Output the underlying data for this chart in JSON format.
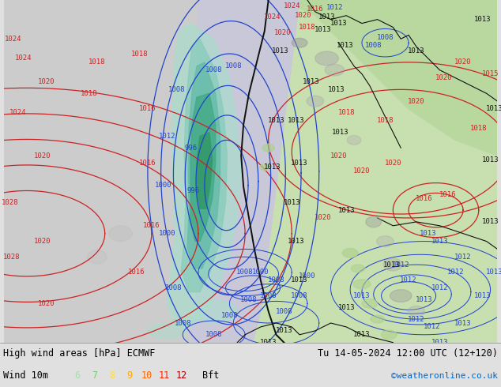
{
  "title_left": "High wind areas [hPa] ECMWF",
  "title_right": "Tu 14-05-2024 12:00 UTC (12+120)",
  "wind_label": "Wind 10m",
  "bft_label": "Bft",
  "bft_values": [
    "6",
    "7",
    "8",
    "9",
    "10",
    "11",
    "12"
  ],
  "bft_colors": [
    "#aaddaa",
    "#77cc77",
    "#ffdd44",
    "#ffaa00",
    "#ff6600",
    "#ff2200",
    "#aa0000"
  ],
  "copyright": "©weatheronline.co.uk",
  "copyright_color": "#0066cc",
  "bottom_bar_color": "#e0e0e0",
  "bottom_text_color": "#000000",
  "fig_width": 6.34,
  "fig_height": 4.9,
  "ocean_color": "#d8d8e8",
  "land_color": "#b8d8a0",
  "land_color2": "#c8e0b0",
  "sea_color": "#c0c8d8",
  "red_isobar": "#cc2222",
  "blue_isobar": "#2244cc",
  "black_isobar": "#111111",
  "wind_cyan": "#88ddcc",
  "wind_green": "#66cc88",
  "wind_darkgreen": "#44aa66"
}
